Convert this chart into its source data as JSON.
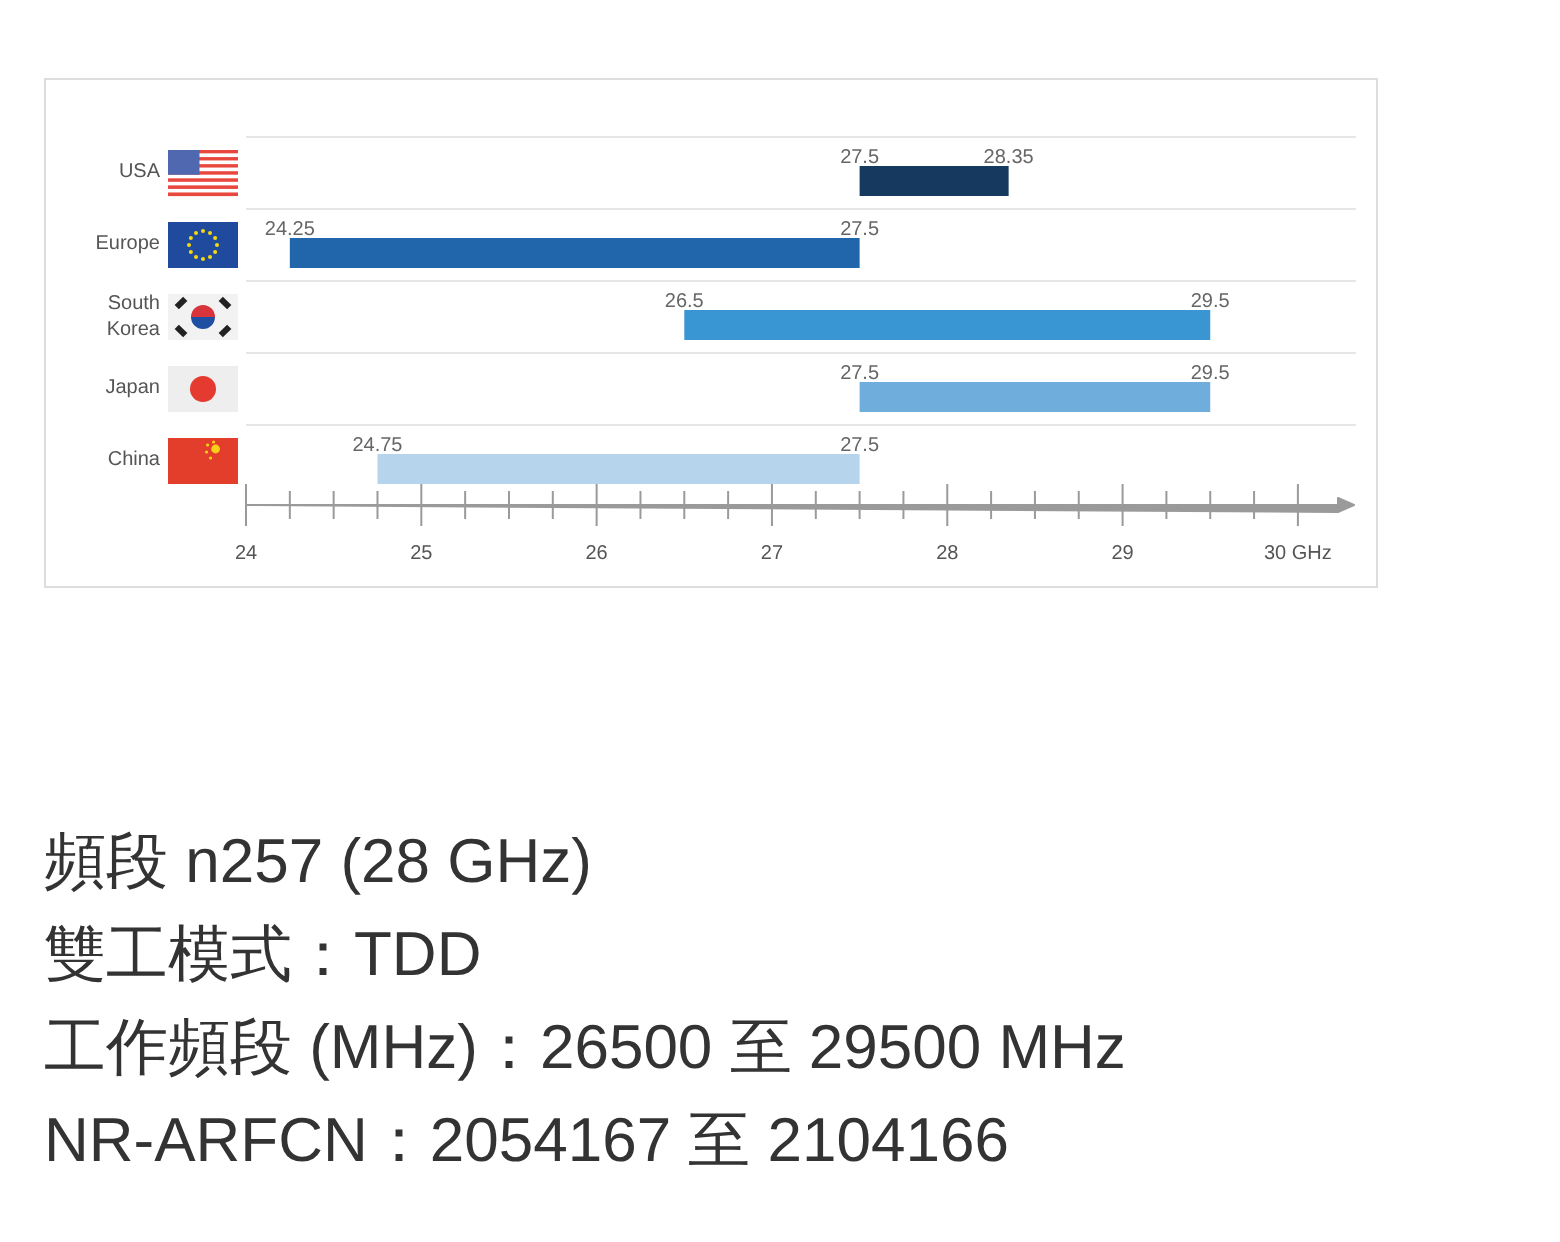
{
  "chart_data": {
    "type": "bar",
    "orientation": "horizontal",
    "categories": [
      "USA",
      "Europe",
      "South Korea",
      "Japan",
      "China"
    ],
    "base": [
      27.5,
      24.25,
      26.5,
      27.5,
      24.75
    ],
    "values": [
      0.85,
      3.25,
      3,
      2,
      2.75
    ],
    "colors": [
      "#16395f",
      "#2166ab",
      "#3a96d3",
      "#6eaddc",
      "#b6d4eb"
    ],
    "xlim": [
      24,
      30.32
    ],
    "xticks": [
      24,
      {
        "value": 24.25,
        "label": null
      },
      {
        "value": 24.5,
        "label": null
      },
      {
        "value": 24.75,
        "label": null
      },
      25,
      {
        "value": 25.25,
        "label": null
      },
      {
        "value": 25.5,
        "label": null
      },
      {
        "value": 25.75,
        "label": null
      },
      26,
      {
        "value": 26.25,
        "label": null
      },
      {
        "value": 26.5,
        "label": null
      },
      {
        "value": 26.75,
        "label": null
      },
      27,
      {
        "value": 27.25,
        "label": null
      },
      {
        "value": 27.5,
        "label": null
      },
      {
        "value": 27.75,
        "label": null
      },
      28,
      {
        "value": 28.25,
        "label": null
      },
      {
        "value": 28.5,
        "label": null
      },
      {
        "value": 28.75,
        "label": null
      },
      29,
      {
        "value": 29.25,
        "label": null
      },
      {
        "value": 29.5,
        "label": null
      },
      {
        "value": 29.75,
        "label": null
      },
      {
        "value": 30,
        "label": "30 GHz"
      }
    ],
    "grid": "y",
    "annotations": [
      {
        "text": "27.5",
        "x": 27.5,
        "y": "USA"
      },
      {
        "text": "28.35",
        "x": 28.35,
        "y": "USA"
      },
      {
        "text": "24.25",
        "x": 24.25,
        "y": "Europe"
      },
      {
        "text": "27.5",
        "x": 27.5,
        "y": "Europe"
      },
      {
        "text": "26.5",
        "x": 26.5,
        "y": "South Korea"
      },
      {
        "text": "29.5",
        "x": 29.5,
        "y": "South Korea"
      },
      {
        "text": "27.5",
        "x": 27.5,
        "y": "Japan"
      },
      {
        "text": "29.5",
        "x": 29.5,
        "y": "Japan"
      },
      {
        "text": "24.75",
        "x": 24.75,
        "y": "China"
      },
      {
        "text": "27.5",
        "x": 27.5,
        "y": "China"
      },
      "頻段 n257 (28 GHz)",
      "雙工模式：TDD",
      "工作頻段 (MHz)：26500 至 29500 MHz",
      "NR-ARFCN：2054167 至 2104166"
    ]
  }
}
